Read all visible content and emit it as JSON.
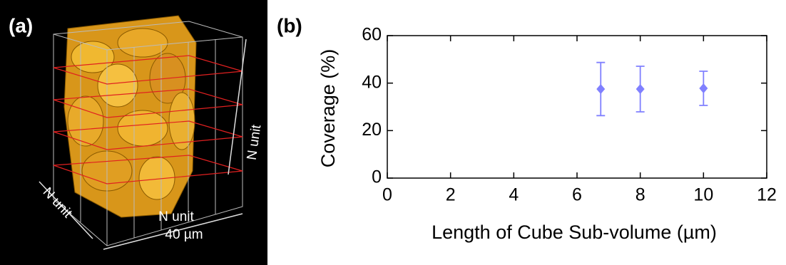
{
  "image_panel": {
    "label": "(a)",
    "annotations": [
      "N unit",
      "N unit",
      "N unit",
      "40 µm"
    ]
  },
  "chart_data": {
    "type": "scatter",
    "panel_label": "(b)",
    "x_label": "Length of Cube Sub-volume (µm)",
    "y_label": "Coverage (%)",
    "xlim": [
      0,
      12
    ],
    "xticks": [
      0,
      2,
      4,
      6,
      8,
      10,
      12
    ],
    "ylim": [
      0,
      60
    ],
    "yticks": [
      0,
      20,
      40,
      60
    ],
    "series": [
      {
        "color": "#8080ff",
        "x": [
          6.75,
          8,
          10
        ],
        "values": [
          37.5,
          37.5,
          37.8
        ],
        "errors": [
          11.2,
          9.6,
          7.2
        ]
      }
    ]
  }
}
